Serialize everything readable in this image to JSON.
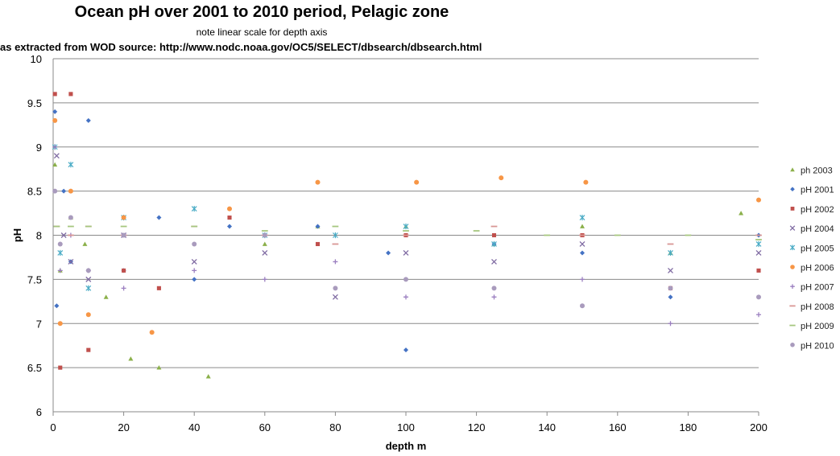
{
  "chart_data": {
    "type": "scatter",
    "title": "Ocean pH over 2001 to 2010 period, Pelagic zone",
    "subtitle": "note linear scale for depth axis",
    "source_note": "as extracted from WOD  source: http://www.nodc.noaa.gov/OC5/SELECT/dbsearch/dbsearch.html",
    "xlabel": "depth m",
    "ylabel": "pH",
    "xlim": [
      0,
      200
    ],
    "ylim": [
      6,
      10
    ],
    "xticks": [
      "0",
      "20",
      "40",
      "60",
      "80",
      "100",
      "120",
      "140",
      "160",
      "180",
      "200"
    ],
    "yticks": [
      "6",
      "6.5",
      "7",
      "7.5",
      "8",
      "8.5",
      "9",
      "9.5",
      "10"
    ],
    "grid": "horizontal",
    "legend_position": "right",
    "series": [
      {
        "name": "ph 2003",
        "color": "#8bb04a",
        "marker": "triangle",
        "x": [
          0.5,
          2,
          5,
          9,
          15,
          22,
          30,
          44,
          60,
          75,
          100,
          125,
          150,
          175,
          195
        ],
        "y": [
          8.8,
          7.6,
          8.2,
          7.9,
          7.3,
          6.6,
          6.5,
          6.4,
          7.9,
          8.1,
          8.1,
          7.9,
          8.1,
          7.8,
          8.25
        ]
      },
      {
        "name": "pH 2001",
        "color": "#4472c4",
        "marker": "diamond",
        "x": [
          0.5,
          1,
          3,
          5,
          10,
          20,
          30,
          40,
          50,
          75,
          95,
          100,
          125,
          150,
          175,
          200
        ],
        "y": [
          9.4,
          7.2,
          8.5,
          7.7,
          9.3,
          7.6,
          8.2,
          7.5,
          8.1,
          8.1,
          7.8,
          6.7,
          7.9,
          7.8,
          7.3,
          8.0
        ]
      },
      {
        "name": "pH 2002",
        "color": "#c0504d",
        "marker": "square",
        "x": [
          0.5,
          2,
          5,
          10,
          20,
          30,
          50,
          75,
          100,
          125,
          150,
          175,
          200
        ],
        "y": [
          9.6,
          6.5,
          9.6,
          6.7,
          7.6,
          7.4,
          8.2,
          7.9,
          8.0,
          8.0,
          8.0,
          7.4,
          7.6
        ]
      },
      {
        "name": "pH 2004",
        "color": "#7f6aa2",
        "marker": "x",
        "x": [
          1,
          3,
          5,
          10,
          20,
          40,
          60,
          80,
          100,
          125,
          150,
          175,
          200
        ],
        "y": [
          8.9,
          8.0,
          7.7,
          7.5,
          8.0,
          7.7,
          7.8,
          7.3,
          7.8,
          7.7,
          7.9,
          7.6,
          7.8
        ]
      },
      {
        "name": "pH 2005",
        "color": "#4bacc6",
        "marker": "star",
        "x": [
          0.5,
          2,
          5,
          10,
          20,
          40,
          60,
          80,
          100,
          125,
          150,
          175,
          200
        ],
        "y": [
          9.0,
          7.8,
          8.8,
          7.4,
          8.2,
          8.3,
          8.0,
          8.0,
          8.1,
          7.9,
          8.2,
          7.8,
          7.9
        ]
      },
      {
        "name": "pH 2006",
        "color": "#f79646",
        "marker": "circle",
        "x": [
          0.5,
          2,
          5,
          10,
          20,
          28,
          50,
          75,
          103,
          127,
          151,
          200
        ],
        "y": [
          9.3,
          7.0,
          8.5,
          7.1,
          8.2,
          6.9,
          8.3,
          8.6,
          8.6,
          8.65,
          8.6,
          8.4
        ]
      },
      {
        "name": "pH 2007",
        "color": "#9b7fc0",
        "marker": "plus",
        "x": [
          0.5,
          2,
          5,
          10,
          20,
          40,
          60,
          80,
          100,
          125,
          150,
          175,
          200
        ],
        "y": [
          9.0,
          7.6,
          8.0,
          7.6,
          7.4,
          7.6,
          7.5,
          7.7,
          7.3,
          7.3,
          7.5,
          7.0,
          7.1
        ]
      },
      {
        "name": "pH 2008",
        "color": "#d99694",
        "marker": "dash",
        "x": [
          1,
          5,
          10,
          20,
          40,
          60,
          80,
          100,
          125,
          150,
          175,
          200
        ],
        "y": [
          8.1,
          8.0,
          8.1,
          8.0,
          8.1,
          8.0,
          7.9,
          8.0,
          8.1,
          8.0,
          7.9,
          8.0
        ]
      },
      {
        "name": "pH 2009",
        "color": "#a6c77f",
        "marker": "dash",
        "x": [
          1,
          5,
          10,
          20,
          40,
          60,
          80,
          100,
          120,
          140,
          160,
          180,
          200
        ],
        "y": [
          8.1,
          8.1,
          8.1,
          8.1,
          8.1,
          8.05,
          8.1,
          8.05,
          8.05,
          8.0,
          8.0,
          8.0,
          7.95
        ]
      },
      {
        "name": "pH 2010",
        "color": "#a99bbd",
        "marker": "circle",
        "x": [
          0.5,
          2,
          5,
          10,
          20,
          40,
          60,
          80,
          100,
          125,
          150,
          175,
          200
        ],
        "y": [
          8.5,
          7.9,
          8.2,
          7.6,
          8.0,
          7.9,
          8.0,
          7.4,
          7.5,
          7.4,
          7.2,
          7.4,
          7.3
        ]
      }
    ]
  }
}
